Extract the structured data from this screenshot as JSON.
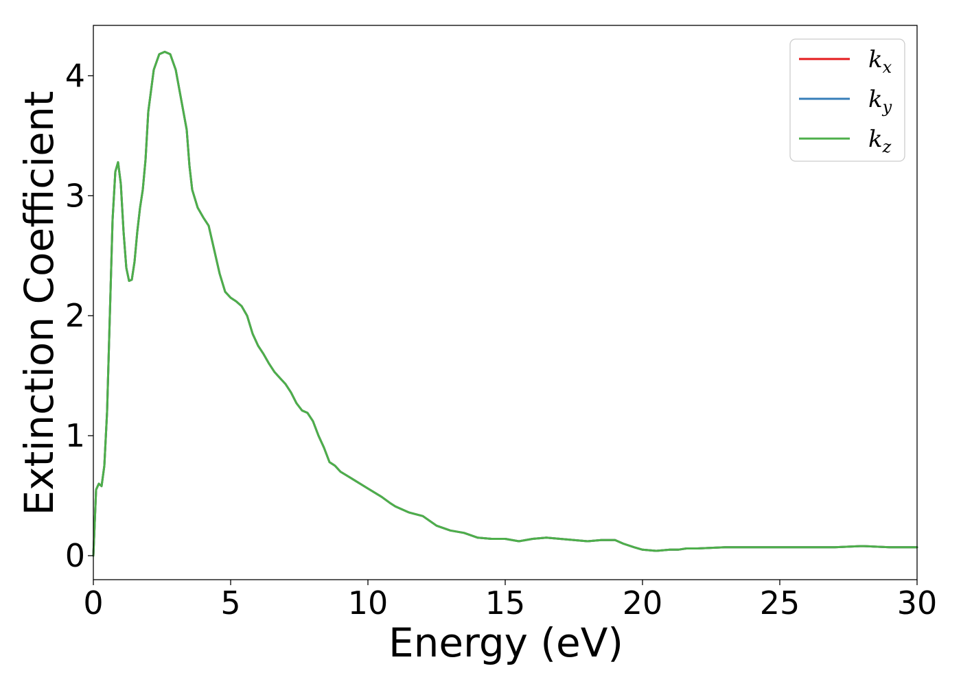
{
  "chart_data": {
    "type": "line",
    "title": "",
    "xlabel": "Energy (eV)",
    "ylabel": "Extinction Coefficient",
    "xlim": [
      0,
      30
    ],
    "ylim": [
      -0.2,
      4.42
    ],
    "xticks": [
      0,
      5,
      10,
      15,
      20,
      25,
      30
    ],
    "yticks": [
      0,
      1,
      2,
      3,
      4
    ],
    "grid": false,
    "legend_position": "top-right",
    "x": [
      0,
      0.1,
      0.2,
      0.3,
      0.4,
      0.5,
      0.6,
      0.7,
      0.8,
      0.9,
      1.0,
      1.1,
      1.2,
      1.3,
      1.4,
      1.5,
      1.6,
      1.7,
      1.8,
      1.9,
      2.0,
      2.2,
      2.4,
      2.6,
      2.8,
      3.0,
      3.2,
      3.4,
      3.5,
      3.6,
      3.8,
      4.0,
      4.2,
      4.4,
      4.6,
      4.8,
      5.0,
      5.2,
      5.4,
      5.6,
      5.8,
      6.0,
      6.2,
      6.4,
      6.6,
      6.8,
      7.0,
      7.2,
      7.4,
      7.6,
      7.8,
      8.0,
      8.2,
      8.4,
      8.6,
      8.8,
      9.0,
      9.5,
      10.0,
      10.5,
      10.8,
      11.0,
      11.5,
      12.0,
      12.5,
      13.0,
      13.5,
      14.0,
      14.5,
      15.0,
      15.5,
      16.0,
      16.5,
      17.0,
      17.5,
      18.0,
      18.5,
      19.0,
      19.3,
      19.7,
      20.0,
      20.5,
      21.0,
      21.3,
      21.6,
      22.0,
      23.0,
      24.0,
      25.0,
      25.5,
      26.0,
      26.5,
      27.0,
      28.0,
      29.0,
      29.5,
      30.0
    ],
    "series": [
      {
        "name": "k_x",
        "color": "#e41a1c",
        "values": [
          0,
          0.55,
          0.6,
          0.58,
          0.75,
          1.2,
          2.0,
          2.8,
          3.2,
          3.28,
          3.1,
          2.7,
          2.4,
          2.29,
          2.3,
          2.45,
          2.7,
          2.9,
          3.05,
          3.3,
          3.7,
          4.05,
          4.18,
          4.2,
          4.18,
          4.05,
          3.8,
          3.55,
          3.25,
          3.05,
          2.9,
          2.82,
          2.75,
          2.55,
          2.35,
          2.2,
          2.15,
          2.12,
          2.08,
          2.0,
          1.85,
          1.75,
          1.68,
          1.6,
          1.53,
          1.48,
          1.43,
          1.36,
          1.27,
          1.21,
          1.19,
          1.12,
          1.0,
          0.9,
          0.78,
          0.75,
          0.7,
          0.63,
          0.56,
          0.49,
          0.44,
          0.41,
          0.36,
          0.33,
          0.25,
          0.21,
          0.19,
          0.15,
          0.14,
          0.14,
          0.12,
          0.14,
          0.15,
          0.14,
          0.13,
          0.12,
          0.13,
          0.13,
          0.1,
          0.07,
          0.05,
          0.04,
          0.05,
          0.05,
          0.06,
          0.06,
          0.07,
          0.07,
          0.07,
          0.07,
          0.07,
          0.07,
          0.07,
          0.08,
          0.07,
          0.07,
          0.07
        ]
      },
      {
        "name": "k_y",
        "color": "#377eb8",
        "values": [
          0,
          0.55,
          0.6,
          0.58,
          0.75,
          1.2,
          2.0,
          2.8,
          3.2,
          3.28,
          3.1,
          2.7,
          2.4,
          2.29,
          2.3,
          2.45,
          2.7,
          2.9,
          3.05,
          3.3,
          3.7,
          4.05,
          4.18,
          4.2,
          4.18,
          4.05,
          3.8,
          3.55,
          3.25,
          3.05,
          2.9,
          2.82,
          2.75,
          2.55,
          2.35,
          2.2,
          2.15,
          2.12,
          2.08,
          2.0,
          1.85,
          1.75,
          1.68,
          1.6,
          1.53,
          1.48,
          1.43,
          1.36,
          1.27,
          1.21,
          1.19,
          1.12,
          1.0,
          0.9,
          0.78,
          0.75,
          0.7,
          0.63,
          0.56,
          0.49,
          0.44,
          0.41,
          0.36,
          0.33,
          0.25,
          0.21,
          0.19,
          0.15,
          0.14,
          0.14,
          0.12,
          0.14,
          0.15,
          0.14,
          0.13,
          0.12,
          0.13,
          0.13,
          0.1,
          0.07,
          0.05,
          0.04,
          0.05,
          0.05,
          0.06,
          0.06,
          0.07,
          0.07,
          0.07,
          0.07,
          0.07,
          0.07,
          0.07,
          0.08,
          0.07,
          0.07,
          0.07
        ]
      },
      {
        "name": "k_z",
        "color": "#4daf4a",
        "values": [
          0,
          0.55,
          0.6,
          0.58,
          0.75,
          1.2,
          2.0,
          2.8,
          3.2,
          3.28,
          3.1,
          2.7,
          2.4,
          2.29,
          2.3,
          2.45,
          2.7,
          2.9,
          3.05,
          3.3,
          3.7,
          4.05,
          4.18,
          4.2,
          4.18,
          4.05,
          3.8,
          3.55,
          3.25,
          3.05,
          2.9,
          2.82,
          2.75,
          2.55,
          2.35,
          2.2,
          2.15,
          2.12,
          2.08,
          2.0,
          1.85,
          1.75,
          1.68,
          1.6,
          1.53,
          1.48,
          1.43,
          1.36,
          1.27,
          1.21,
          1.19,
          1.12,
          1.0,
          0.9,
          0.78,
          0.75,
          0.7,
          0.63,
          0.56,
          0.49,
          0.44,
          0.41,
          0.36,
          0.33,
          0.25,
          0.21,
          0.19,
          0.15,
          0.14,
          0.14,
          0.12,
          0.14,
          0.15,
          0.14,
          0.13,
          0.12,
          0.13,
          0.13,
          0.1,
          0.07,
          0.05,
          0.04,
          0.05,
          0.05,
          0.06,
          0.06,
          0.07,
          0.07,
          0.07,
          0.07,
          0.07,
          0.07,
          0.07,
          0.08,
          0.07,
          0.07,
          0.07
        ]
      }
    ],
    "legend": [
      {
        "symbol": "k",
        "sub": "x",
        "color": "#e41a1c"
      },
      {
        "symbol": "k",
        "sub": "y",
        "color": "#377eb8"
      },
      {
        "symbol": "k",
        "sub": "z",
        "color": "#4daf4a"
      }
    ]
  }
}
